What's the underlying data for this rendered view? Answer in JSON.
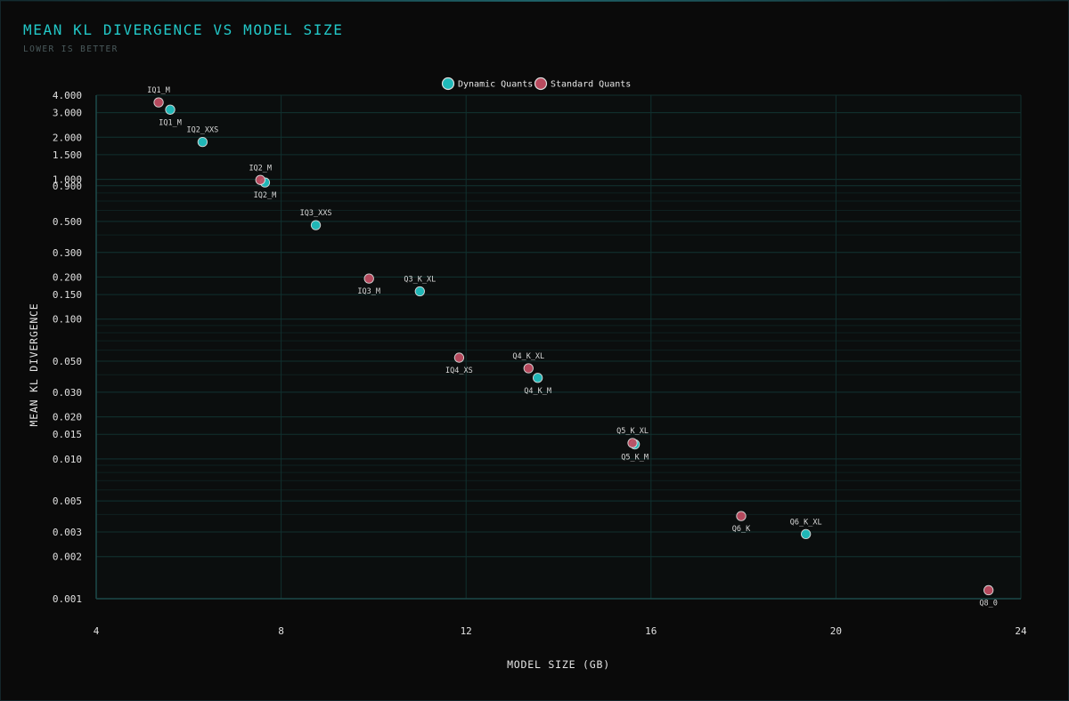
{
  "colors": {
    "background": "#0a0a0a",
    "plot_background": "#0b0e0e",
    "grid": "#11302f",
    "axis": "#1d4a4a",
    "dynamic": "#22c3c3",
    "standard": "#c24e63",
    "title": "#22c8c8",
    "subtitle": "#4a5a5c"
  },
  "chart_data": {
    "type": "scatter",
    "title": "MEAN KL DIVERGENCE VS MODEL SIZE",
    "subtitle": "LOWER IS BETTER",
    "xlabel": "MODEL SIZE (GB)",
    "ylabel": "MEAN KL DIVERGENCE",
    "xlim": [
      4,
      24
    ],
    "ylim": [
      0.001,
      4.0
    ],
    "yscale": "log",
    "grid": true,
    "legend_position": "top-center",
    "x_ticks": [
      4,
      8,
      12,
      16,
      20,
      24
    ],
    "x_tick_labels": [
      "4",
      "8",
      "12",
      "16",
      "20",
      "24"
    ],
    "y_ticks": [
      0.001,
      0.002,
      0.003,
      0.005,
      0.01,
      0.015,
      0.02,
      0.03,
      0.05,
      0.1,
      0.15,
      0.2,
      0.3,
      0.5,
      0.9,
      1.0,
      1.5,
      2.0,
      3.0,
      4.0
    ],
    "y_tick_labels": [
      "0.001",
      "0.002",
      "0.003",
      "0.005",
      "0.010",
      "0.015",
      "0.020",
      "0.030",
      "0.050",
      "0.100",
      "0.150",
      "0.200",
      "0.300",
      "0.500",
      "0.900",
      "1.000",
      "1.500",
      "2.000",
      "3.000",
      "4.000"
    ],
    "series": [
      {
        "name": "Dynamic Quants",
        "color": "#22c3c3",
        "points": [
          {
            "label": "IQ1_M",
            "x": 5.6,
            "y": 3.15,
            "label_pos": "below"
          },
          {
            "label": "IQ2_XXS",
            "x": 6.3,
            "y": 1.85,
            "label_pos": "above"
          },
          {
            "label": "IQ2_M",
            "x": 7.65,
            "y": 0.95,
            "label_pos": "below"
          },
          {
            "label": "IQ3_XXS",
            "x": 8.75,
            "y": 0.47,
            "label_pos": "above"
          },
          {
            "label": "Q3_K_XL",
            "x": 11.0,
            "y": 0.158,
            "label_pos": "above"
          },
          {
            "label": "Q4_K_M",
            "x": 13.55,
            "y": 0.038,
            "label_pos": "below"
          },
          {
            "label": "Q5_K_M",
            "x": 15.65,
            "y": 0.0127,
            "label_pos": "below"
          },
          {
            "label": "Q6_K_XL",
            "x": 19.35,
            "y": 0.0029,
            "label_pos": "above"
          }
        ]
      },
      {
        "name": "Standard Quants",
        "color": "#c24e63",
        "points": [
          {
            "label": "IQ1_M",
            "x": 5.35,
            "y": 3.55,
            "label_pos": "above"
          },
          {
            "label": "IQ2_M",
            "x": 7.55,
            "y": 0.99,
            "label_pos": "above"
          },
          {
            "label": "IQ3_M",
            "x": 9.9,
            "y": 0.195,
            "label_pos": "below"
          },
          {
            "label": "IQ4_XS",
            "x": 11.85,
            "y": 0.053,
            "label_pos": "below"
          },
          {
            "label": "Q4_K_XL",
            "x": 13.35,
            "y": 0.0445,
            "label_pos": "above"
          },
          {
            "label": "Q5_K_XL",
            "x": 15.6,
            "y": 0.013,
            "label_pos": "above"
          },
          {
            "label": "Q6_K",
            "x": 17.95,
            "y": 0.0039,
            "label_pos": "below"
          },
          {
            "label": "Q8_0",
            "x": 23.3,
            "y": 0.00115,
            "label_pos": "below"
          }
        ]
      }
    ]
  }
}
